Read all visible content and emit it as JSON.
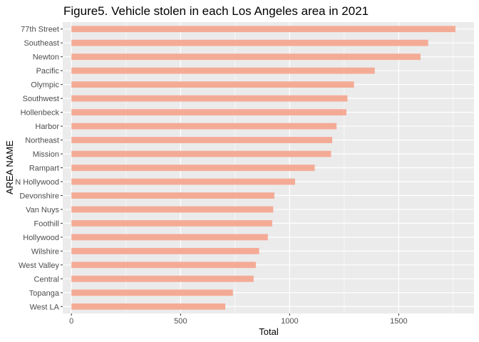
{
  "chart_data": {
    "type": "bar",
    "orientation": "horizontal",
    "title": "Figure5. Vehicle stolen in each Los Angeles area in 2021",
    "xlabel": "Total",
    "ylabel": "AREA NAME",
    "categories": [
      "77th Street",
      "Southeast",
      "Newton",
      "Pacific",
      "Olympic",
      "Southwest",
      "Hollenbeck",
      "Harbor",
      "Northeast",
      "Mission",
      "Rampart",
      "N Hollywood",
      "Devonshire",
      "Van Nuys",
      "Foothill",
      "Hollywood",
      "Wilshire",
      "West Valley",
      "Central",
      "Topanga",
      "West LA"
    ],
    "values": [
      1760,
      1635,
      1600,
      1390,
      1295,
      1265,
      1260,
      1215,
      1195,
      1190,
      1115,
      1025,
      930,
      925,
      920,
      900,
      860,
      845,
      835,
      740,
      705
    ],
    "xlim": [
      -40,
      1845
    ],
    "xticks": [
      0,
      500,
      1000,
      1500
    ],
    "xtick_labels": [
      "0",
      "500",
      "1000",
      "1500"
    ],
    "grid": true,
    "legend": "none",
    "colors": {
      "bar": "#F4AB96",
      "panel": "#EBEBEB",
      "grid_major": "#FFFFFF",
      "tick_text": "#4D4D4D"
    }
  }
}
